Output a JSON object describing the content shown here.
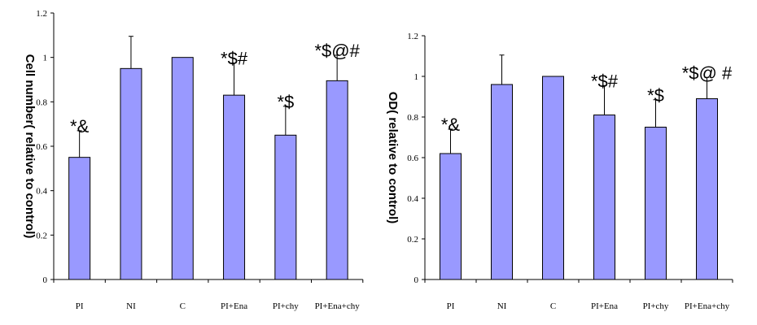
{
  "colors": {
    "bar_fill": "#9999ff",
    "axis": "#000000"
  },
  "chart_data": [
    {
      "type": "bar",
      "title": "",
      "xlabel": "",
      "ylabel": "Cell number( relative to control)",
      "ylim": [
        0,
        1.2
      ],
      "yticks": [
        "0",
        "0.2",
        "0.4",
        "0.6",
        "0.8",
        "1",
        "1.2"
      ],
      "categories": [
        "PI",
        "NI",
        "C",
        "PI+Ena",
        "PI+chy",
        "PI+Ena+chy"
      ],
      "values": [
        0.55,
        0.95,
        1.0,
        0.83,
        0.65,
        0.895
      ],
      "errors": [
        0.12,
        0.145,
        0.0,
        0.145,
        0.13,
        0.115
      ],
      "annotations": [
        "*&",
        "",
        "",
        "*$#",
        "*$",
        "*$@#"
      ],
      "grid": false
    },
    {
      "type": "bar",
      "title": "",
      "xlabel": "",
      "ylabel": "OD( relative to control)",
      "ylim": [
        0,
        1.2
      ],
      "yticks": [
        "0",
        "0.2",
        "0.4",
        "0.6",
        "0.8",
        "1",
        "1.2"
      ],
      "categories": [
        "PI",
        "NI",
        "C",
        "PI+Ena",
        "PI+chy",
        "PI+Ena+chy"
      ],
      "values": [
        0.62,
        0.96,
        1.0,
        0.81,
        0.75,
        0.89
      ],
      "errors": [
        0.12,
        0.145,
        0.0,
        0.145,
        0.135,
        0.105
      ],
      "annotations": [
        "*&",
        "",
        "",
        "*$#",
        "*$",
        "*$@ #"
      ],
      "grid": false
    }
  ]
}
